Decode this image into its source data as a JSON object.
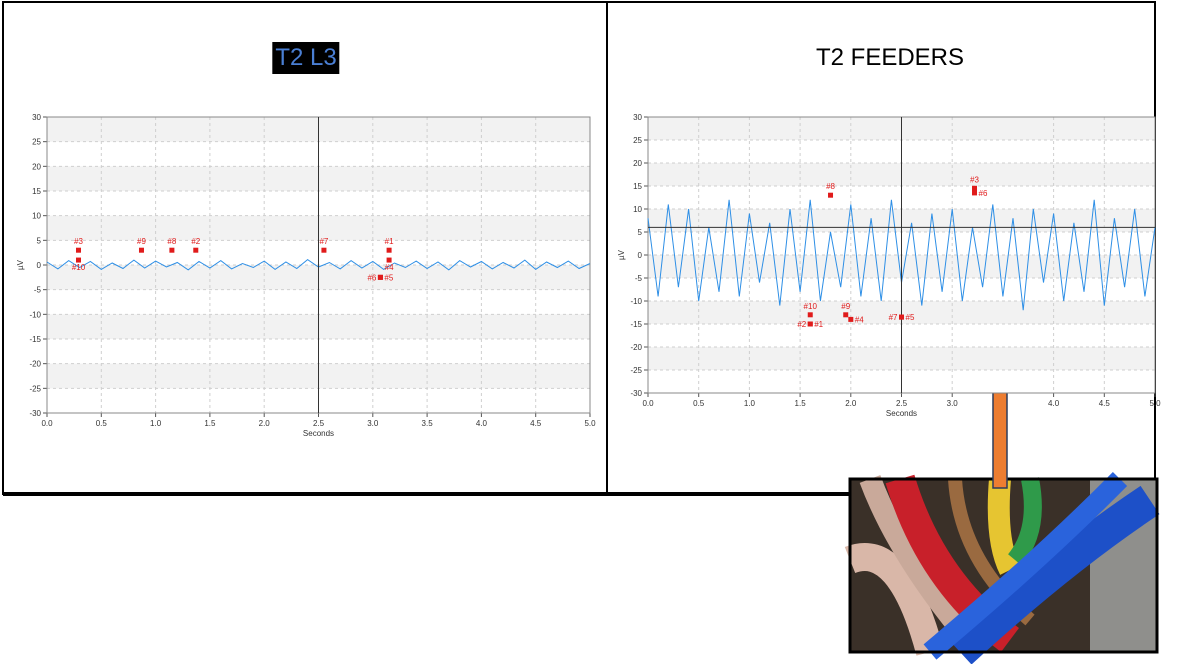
{
  "chart_data": [
    {
      "type": "line",
      "title": "T2 L3",
      "xlabel": "Seconds",
      "ylabel": "µV",
      "xlim": [
        0,
        5
      ],
      "ylim": [
        -30,
        30
      ],
      "grid": true,
      "xticks": [
        {
          "value": 0,
          "label": "0.0"
        },
        {
          "value": 0.5,
          "label": "0.5"
        },
        {
          "value": 1,
          "label": "1.0"
        },
        {
          "value": 1.5,
          "label": "1.5"
        },
        {
          "value": 2,
          "label": "2.0"
        },
        {
          "value": 2.5,
          "label": "2.5"
        },
        {
          "value": 3,
          "label": "3.0"
        },
        {
          "value": 3.5,
          "label": "3.5"
        },
        {
          "value": 4,
          "label": "4.0"
        },
        {
          "value": 4.5,
          "label": "4.5"
        },
        {
          "value": 5,
          "label": "5.0"
        }
      ],
      "yticks": [
        -30,
        -25,
        -20,
        -15,
        -10,
        -5,
        0,
        5,
        10,
        15,
        20,
        25,
        30
      ],
      "x": [
        0,
        0.1,
        0.2,
        0.3,
        0.4,
        0.5,
        0.6,
        0.7,
        0.8,
        0.9,
        1,
        1.1,
        1.2,
        1.3,
        1.4,
        1.5,
        1.6,
        1.7,
        1.8,
        1.9,
        2,
        2.1,
        2.2,
        2.3,
        2.4,
        2.5,
        2.6,
        2.7,
        2.8,
        2.9,
        3,
        3.1,
        3.2,
        3.3,
        3.4,
        3.5,
        3.6,
        3.7,
        3.8,
        3.9,
        4,
        4.1,
        4.2,
        4.3,
        4.4,
        4.5,
        4.6,
        4.7,
        4.8,
        4.9,
        5
      ],
      "series": [
        {
          "color": "#2e8fe6",
          "values": [
            0.6,
            -0.8,
            0.9,
            -0.5,
            0.7,
            -0.9,
            0.4,
            -0.7,
            1.0,
            -0.6,
            0.8,
            -0.4,
            0.5,
            -1.0,
            0.7,
            -0.6,
            0.9,
            -0.8,
            0.3,
            -0.5,
            0.8,
            -0.9,
            0.6,
            -0.7,
            1.1,
            -0.4,
            0.5,
            -0.8,
            0.9,
            -0.6,
            0.7,
            -0.9,
            0.4,
            -0.5,
            0.8,
            -0.7,
            0.6,
            -1.0,
            0.9,
            -0.4,
            0.7,
            -0.8,
            0.5,
            -0.6,
            1.0,
            -0.9,
            0.6,
            -0.5,
            0.8,
            -0.7,
            0.3
          ]
        }
      ],
      "cursor_x": 2.5,
      "marker_color": "#e01b1b",
      "markers": [
        {
          "label": "#3",
          "x": 0.29,
          "y": 3,
          "label_pos": "above"
        },
        {
          "label": "#10",
          "x": 0.29,
          "y": 1,
          "label_pos": "below"
        },
        {
          "label": "#9",
          "x": 0.87,
          "y": 3,
          "label_pos": "above"
        },
        {
          "label": "#8",
          "x": 1.15,
          "y": 3,
          "label_pos": "above"
        },
        {
          "label": "#2",
          "x": 1.37,
          "y": 3,
          "label_pos": "above"
        },
        {
          "label": "#7",
          "x": 2.55,
          "y": 3,
          "label_pos": "above"
        },
        {
          "label": "#1",
          "x": 3.15,
          "y": 3,
          "label_pos": "above"
        },
        {
          "label": "#4",
          "x": 3.15,
          "y": 1,
          "label_pos": "below"
        },
        {
          "label": "#6",
          "x": 3.07,
          "y": -2.5,
          "label_pos": "left"
        },
        {
          "label": "#5",
          "x": 3.07,
          "y": -2.5,
          "label_pos": "right"
        }
      ]
    },
    {
      "type": "line",
      "title": "T2 FEEDERS",
      "xlabel": "Seconds",
      "ylabel": "µV",
      "xlim": [
        0,
        5
      ],
      "ylim": [
        -30,
        30
      ],
      "grid": true,
      "xticks": [
        {
          "value": 0,
          "label": "0.0"
        },
        {
          "value": 0.5,
          "label": "0.5"
        },
        {
          "value": 1,
          "label": "1.0"
        },
        {
          "value": 1.5,
          "label": "1.5"
        },
        {
          "value": 2,
          "label": "2.0"
        },
        {
          "value": 2.5,
          "label": "2.5"
        },
        {
          "value": 3,
          "label": "3.0"
        },
        {
          "value": 4,
          "label": "4.0"
        },
        {
          "value": 4.5,
          "label": "4.5"
        },
        {
          "value": 5,
          "label": "5.0"
        }
      ],
      "yticks": [
        -30,
        -25,
        -20,
        -15,
        -10,
        -5,
        0,
        5,
        10,
        15,
        20,
        25,
        30
      ],
      "x": [
        0,
        0.1,
        0.2,
        0.3,
        0.4,
        0.5,
        0.6,
        0.7,
        0.8,
        0.9,
        1,
        1.1,
        1.2,
        1.3,
        1.4,
        1.5,
        1.6,
        1.7,
        1.8,
        1.9,
        2,
        2.1,
        2.2,
        2.3,
        2.4,
        2.5,
        2.6,
        2.7,
        2.8,
        2.9,
        3,
        3.1,
        3.2,
        3.3,
        3.4,
        3.5,
        3.6,
        3.7,
        3.8,
        3.9,
        4,
        4.1,
        4.2,
        4.3,
        4.4,
        4.5,
        4.6,
        4.7,
        4.8,
        4.9,
        5
      ],
      "series": [
        {
          "color": "#2e8fe6",
          "values": [
            8,
            -9,
            11,
            -7,
            10,
            -10,
            6,
            -8,
            12,
            -9,
            9,
            -6,
            7,
            -11,
            10,
            -8,
            12,
            -10,
            5,
            -7,
            11,
            -9,
            8,
            -10,
            12,
            -6,
            7,
            -11,
            9,
            -8,
            10,
            -10,
            6,
            -7,
            11,
            -9,
            8,
            -12,
            10,
            -6,
            9,
            -10,
            7,
            -8,
            12,
            -11,
            8,
            -7,
            10,
            -9,
            6
          ]
        }
      ],
      "cursor_x": 2.5,
      "cursor_y": 6,
      "marker_color": "#e01b1b",
      "markers": [
        {
          "label": "#8",
          "x": 1.8,
          "y": 13,
          "label_pos": "above"
        },
        {
          "label": "#3",
          "x": 3.22,
          "y": 14.5,
          "label_pos": "above"
        },
        {
          "label": "#6",
          "x": 3.22,
          "y": 13.5,
          "label_pos": "right"
        },
        {
          "label": "#10",
          "x": 1.6,
          "y": -13,
          "label_pos": "above"
        },
        {
          "label": "#2",
          "x": 1.6,
          "y": -15,
          "label_pos": "left"
        },
        {
          "label": "#1",
          "x": 1.6,
          "y": -15,
          "label_pos": "right"
        },
        {
          "label": "#9",
          "x": 1.95,
          "y": -13,
          "label_pos": "above"
        },
        {
          "label": "#4",
          "x": 2.0,
          "y": -14,
          "label_pos": "right"
        },
        {
          "label": "#7",
          "x": 2.5,
          "y": -13.5,
          "label_pos": "left"
        },
        {
          "label": "#5",
          "x": 2.5,
          "y": -13.5,
          "label_pos": "right"
        }
      ]
    }
  ]
}
